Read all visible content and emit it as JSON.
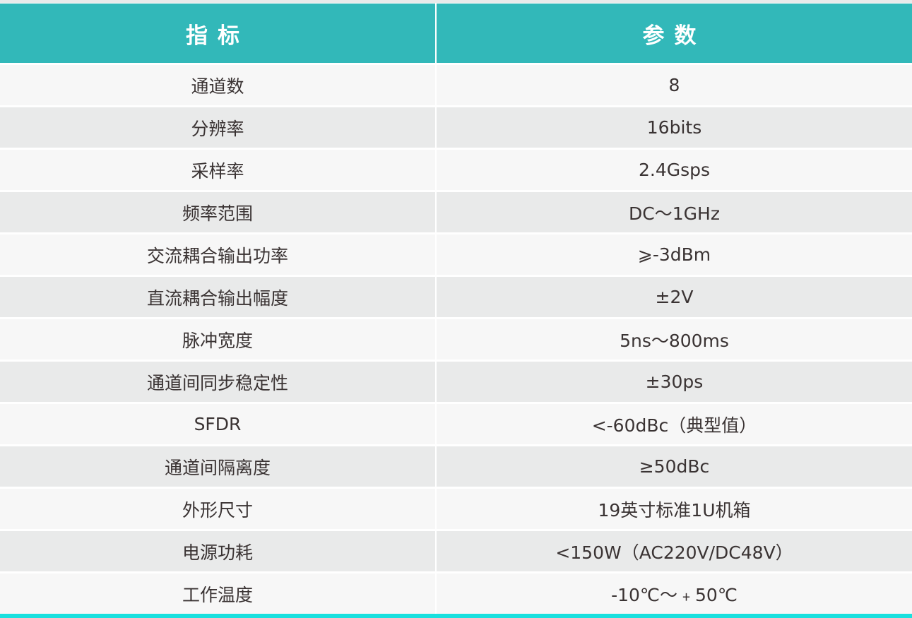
{
  "colors": {
    "header": "#32b8b9",
    "row_light": "#f7f7f7",
    "row_dark": "#e9eaea",
    "bottom_line": "#19e0de"
  },
  "header": {
    "col1": "指标",
    "col2": "参数"
  },
  "rows": [
    {
      "name": "通道数",
      "value": "8"
    },
    {
      "name": "分辨率",
      "value": "16bits"
    },
    {
      "name": "采样率",
      "value": "2.4Gsps"
    },
    {
      "name": "频率范围",
      "value": "DC～1GHz"
    },
    {
      "name": "交流耦合输出功率",
      "value": "⩾-3dBm"
    },
    {
      "name": "直流耦合输出幅度",
      "value": "±2V"
    },
    {
      "name": "脉冲宽度",
      "value": "5ns～800ms"
    },
    {
      "name": "通道间同步稳定性",
      "value": "±30ps"
    },
    {
      "name": "SFDR",
      "value": "<-60dBc（典型值）"
    },
    {
      "name": "通道间隔离度",
      "value": "≥50dBc"
    },
    {
      "name": "外形尺寸",
      "value": "19英寸标准1U机箱"
    },
    {
      "name": "电源功耗",
      "value": "<150W（AC220V/DC48V）"
    },
    {
      "name": "工作温度",
      "value": "-10℃～﹢50℃"
    }
  ]
}
